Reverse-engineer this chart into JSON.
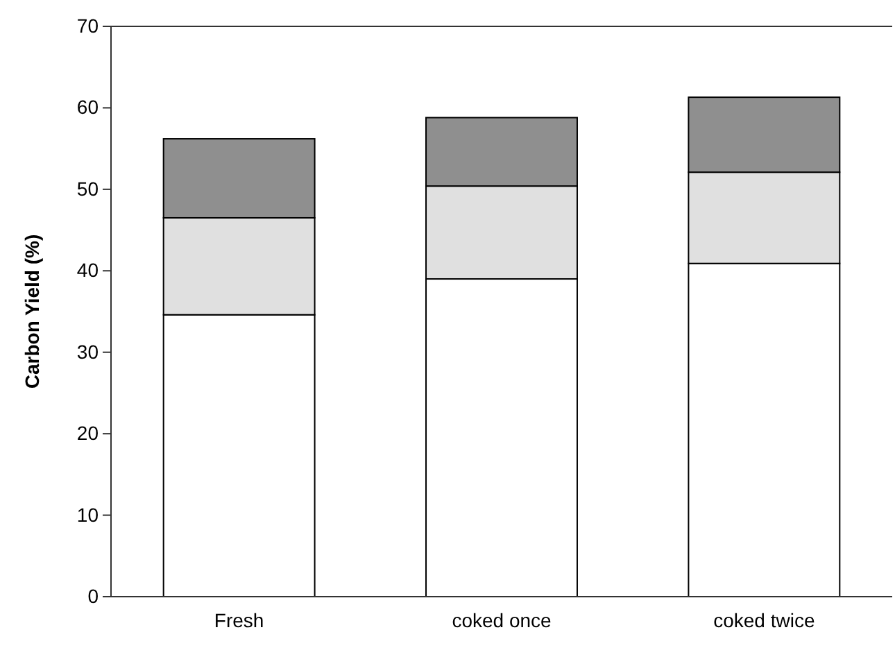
{
  "chart_data": {
    "type": "bar",
    "stacked": true,
    "ylabel": "Carbon Yield (%)",
    "categories": [
      "Fresh",
      "coked once",
      "coked twice"
    ],
    "series": [
      {
        "color": "#ffffff",
        "values": [
          34.6,
          39.0,
          40.9
        ]
      },
      {
        "color": "#e0e0e0",
        "values": [
          11.9,
          11.4,
          11.2
        ]
      },
      {
        "color": "#8f8f8f",
        "values": [
          9.7,
          8.4,
          9.2
        ]
      }
    ],
    "ylim": [
      0,
      70
    ],
    "yticks": [
      0,
      10,
      20,
      30,
      40,
      50,
      60,
      70
    ],
    "grid": false
  }
}
